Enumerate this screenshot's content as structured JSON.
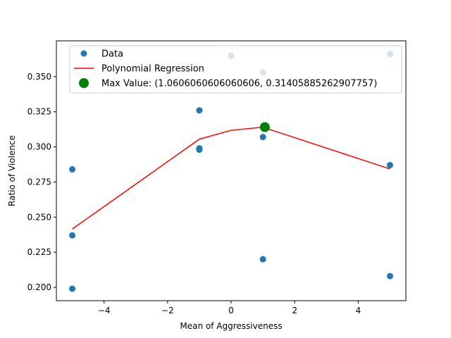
{
  "chart_data": {
    "type": "scatter",
    "title": "",
    "xlabel": "Mean of Aggressiveness",
    "ylabel": "Ratio of Violence",
    "xlim": [
      -5.5,
      5.5
    ],
    "ylim": [
      0.1905,
      0.3755
    ],
    "x_ticks": [
      -4,
      -2,
      0,
      2,
      4
    ],
    "x_tick_labels": [
      "−4",
      "−2",
      "0",
      "2",
      "4"
    ],
    "y_ticks": [
      0.2,
      0.225,
      0.25,
      0.275,
      0.3,
      0.325,
      0.35
    ],
    "y_tick_labels": [
      "0.200",
      "0.225",
      "0.250",
      "0.275",
      "0.300",
      "0.325",
      "0.350"
    ],
    "grid": false,
    "legend_position": "top-right",
    "series": [
      {
        "name": "Data",
        "kind": "scatter",
        "color": "#1f77b4",
        "points": [
          {
            "x": -5,
            "y": 0.199
          },
          {
            "x": -5,
            "y": 0.237
          },
          {
            "x": -5,
            "y": 0.284
          },
          {
            "x": -1,
            "y": 0.326
          },
          {
            "x": -1,
            "y": 0.299
          },
          {
            "x": -1,
            "y": 0.298
          },
          {
            "x": 0,
            "y": 0.365
          },
          {
            "x": 1,
            "y": 0.353
          },
          {
            "x": 1,
            "y": 0.307
          },
          {
            "x": 1,
            "y": 0.22
          },
          {
            "x": 5,
            "y": 0.366
          },
          {
            "x": 5,
            "y": 0.287
          },
          {
            "x": 5,
            "y": 0.208
          }
        ]
      },
      {
        "name": "Polynomial Regression",
        "kind": "line",
        "color": "#ff0000",
        "points": [
          {
            "x": -5,
            "y": 0.2415
          },
          {
            "x": -1,
            "y": 0.3055
          },
          {
            "x": 0,
            "y": 0.3118
          },
          {
            "x": 1,
            "y": 0.314
          },
          {
            "x": 5,
            "y": 0.2843
          }
        ]
      },
      {
        "name": "Max Value: (1.0606060606060606, 0.31405885262907757)",
        "kind": "max",
        "color": "#008000",
        "points": [
          {
            "x": 1.0606060606060606,
            "y": 0.31405885262907757
          }
        ]
      }
    ]
  }
}
